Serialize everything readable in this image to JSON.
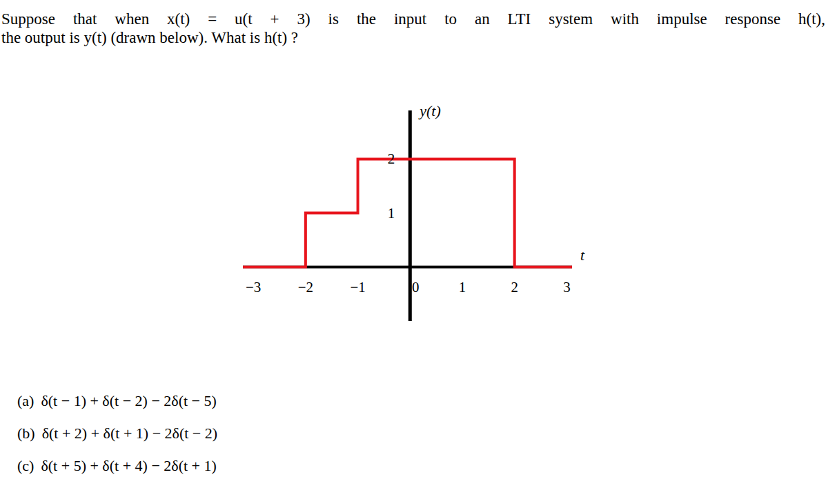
{
  "problem": {
    "lines": [
      "Suppose that when x(t) = u(t + 3) is the input to an LTI system with impulse response h(t),",
      "the output is y(t) (drawn below). What is h(t) ?"
    ]
  },
  "options": [
    {
      "label": "(a)",
      "text": "δ(t − 1) + δ(t − 2) − 2δ(t − 5)"
    },
    {
      "label": "(b)",
      "text": "δ(t + 2) + δ(t + 1) − 2δ(t − 2)"
    },
    {
      "label": "(c)",
      "text": "δ(t + 5) + δ(t + 4) − 2δ(t + 1)"
    }
  ],
  "chart_data": {
    "type": "line",
    "xlabel": "t",
    "ylabel": "y(t)",
    "x": [
      -3.2,
      -2,
      -1,
      2,
      3.1
    ],
    "values": [
      0,
      1,
      2,
      0,
      0
    ],
    "color": "#e8141c",
    "line_style": "step",
    "xlim": [
      -3.2,
      3.1
    ],
    "ylim": [
      -1,
      2.9
    ],
    "xticks": [
      {
        "value": -3,
        "label": "−3"
      },
      {
        "value": -2,
        "label": "−2"
      },
      {
        "value": -1,
        "label": "−1"
      },
      0,
      1,
      2,
      3
    ],
    "yticks": [
      1,
      2
    ],
    "grid": false
  }
}
